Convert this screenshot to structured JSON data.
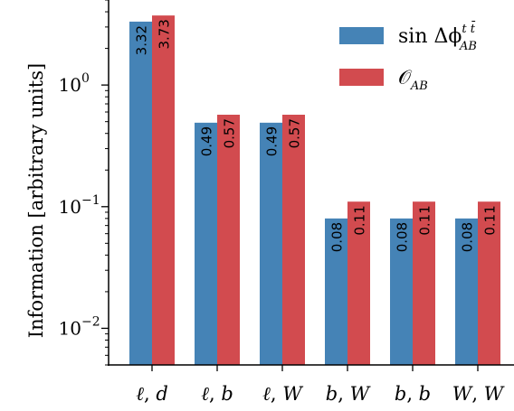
{
  "chart_data": {
    "type": "bar",
    "title": "",
    "ylabel": "Information [arbitrary units]",
    "xlabel": "",
    "yscale": "log",
    "ylim": [
      0.005,
      5.0
    ],
    "yticks": [
      {
        "value": 1,
        "label_base": "10",
        "label_exp": "0"
      },
      {
        "value": 0.1,
        "label_base": "10",
        "label_exp": "−1"
      },
      {
        "value": 0.01,
        "label_base": "10",
        "label_exp": "−2"
      }
    ],
    "categories": [
      {
        "a": "ℓ",
        "b": "d"
      },
      {
        "a": "ℓ",
        "b": "b"
      },
      {
        "a": "ℓ",
        "b": "W"
      },
      {
        "a": "b",
        "b": "W"
      },
      {
        "a": "b",
        "b": "b"
      },
      {
        "a": "W",
        "b": "W"
      }
    ],
    "series": [
      {
        "name_main": "sin Δϕ",
        "name_sup": "t t̄",
        "name_sub": "AB",
        "color": "#4583b6",
        "values": [
          3.32,
          0.49,
          0.49,
          0.08,
          0.08,
          0.08
        ],
        "labels": [
          "3.32",
          "0.49",
          "0.49",
          "0.08",
          "0.08",
          "0.08"
        ]
      },
      {
        "name_main": "𝒪",
        "name_sup": "",
        "name_sub": "AB",
        "color": "#d24b4f",
        "values": [
          3.73,
          0.57,
          0.57,
          0.11,
          0.11,
          0.11
        ],
        "labels": [
          "3.73",
          "0.57",
          "0.57",
          "0.11",
          "0.11",
          "0.11"
        ]
      }
    ],
    "grid": false,
    "legend": "top-right"
  }
}
